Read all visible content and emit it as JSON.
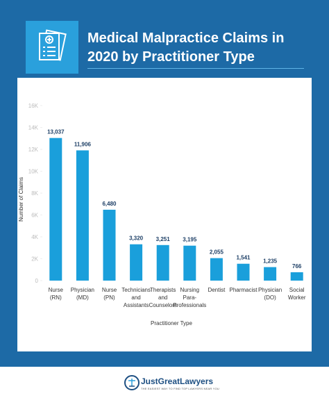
{
  "chart_data": {
    "type": "bar",
    "title": "Medical Malpractice Claims in 2020 by Practitioner Type",
    "x_label": "Practitioner Type",
    "y_label": "Number of Claims",
    "categories": [
      "Nurse (RN)",
      "Physician (MD)",
      "Nurse (PN)",
      "Technicians and Assistants",
      "Therapists and Counselors",
      "Nursing Para- Professionals",
      "Dentist",
      "Pharmacist",
      "Physician (DO)",
      "Social Worker"
    ],
    "values": [
      13037,
      11906,
      6480,
      3320,
      3251,
      3195,
      2055,
      1541,
      1235,
      766
    ],
    "value_labels": [
      "13,037",
      "11,906",
      "6,480",
      "3,320",
      "3,251",
      "3,195",
      "2,055",
      "1,541",
      "1,235",
      "766"
    ],
    "color": "#1a9fdb",
    "ylim": [
      0,
      16000
    ],
    "yticks": [
      0,
      {
        "value": 2000,
        "label": "2K"
      },
      {
        "value": 4000,
        "label": "4K"
      },
      {
        "value": 6000,
        "label": "6K"
      },
      {
        "value": 8000,
        "label": "8K"
      },
      {
        "value": 10000,
        "label": "10K"
      },
      {
        "value": 12000,
        "label": "12K"
      },
      {
        "value": 14000,
        "label": "14K"
      },
      {
        "value": 16000,
        "label": "16K"
      }
    ]
  },
  "footer": {
    "brand": "JustGreatLawyers",
    "tagline": "THE EASIEST WAY TO FIND TOP LAWYERS NEAR YOU"
  }
}
